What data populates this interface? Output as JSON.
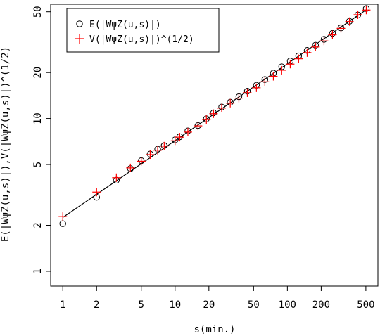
{
  "chart_data": {
    "type": "scatter",
    "x_scale": "log",
    "y_scale": "log",
    "xlabel": "s(min.)",
    "ylabel": "E(|WψZ(u,s)|),V(|WψZ(u,s)|)^(1/2)",
    "xlim": [
      0.78,
      640
    ],
    "ylim": [
      0.8,
      56
    ],
    "x_ticks": [
      1,
      2,
      5,
      10,
      20,
      50,
      100,
      200,
      500
    ],
    "y_ticks": [
      1,
      2,
      5,
      10,
      20,
      50
    ],
    "x_tick_labels": [
      "1",
      "2",
      "5",
      "10",
      "20",
      "50",
      "100",
      "200",
      "500"
    ],
    "y_tick_labels": [
      "1",
      "2",
      "5",
      "10",
      "20",
      "50"
    ],
    "grid": false,
    "legend_position": "top-left",
    "series": [
      {
        "name": "E(|WψZ(u,s)|)",
        "marker": "open-circle",
        "color": "#000000",
        "x": [
          1,
          2,
          3,
          4,
          5,
          6,
          7,
          8,
          10,
          11,
          13,
          16,
          19,
          22,
          26,
          31,
          37,
          44,
          53,
          63,
          75,
          89,
          106,
          126,
          150,
          178,
          212,
          252,
          300,
          357,
          424,
          504
        ],
        "y": [
          2.05,
          3.05,
          3.95,
          4.7,
          5.3,
          5.85,
          6.3,
          6.65,
          7.25,
          7.6,
          8.3,
          9.0,
          9.95,
          10.9,
          11.9,
          12.8,
          13.9,
          15.1,
          16.5,
          18.0,
          19.8,
          21.8,
          23.8,
          25.7,
          27.9,
          30.2,
          33.0,
          36.1,
          39.2,
          43.3,
          47.6,
          52.5
        ]
      },
      {
        "name": "V(|WψZ(u,s)|)^(1/2)",
        "marker": "plus",
        "color": "#ff0000",
        "x": [
          1,
          2,
          3,
          4,
          5,
          6,
          7,
          8,
          10,
          11,
          13,
          16,
          19,
          22,
          26,
          31,
          37,
          44,
          53,
          63,
          75,
          89,
          106,
          126,
          150,
          178,
          212,
          252,
          300,
          357,
          424,
          504
        ],
        "y": [
          2.28,
          3.3,
          4.1,
          4.75,
          5.25,
          5.8,
          6.2,
          6.6,
          7.15,
          7.55,
          8.15,
          8.95,
          9.85,
          10.75,
          11.7,
          12.6,
          13.6,
          14.75,
          15.9,
          17.4,
          18.9,
          20.7,
          22.7,
          24.6,
          27.0,
          29.4,
          32.2,
          35.3,
          38.9,
          43.1,
          47.8,
          51.3
        ]
      }
    ],
    "fit_line": {
      "x": [
        1,
        504
      ],
      "y": [
        2.25,
        51.5
      ],
      "color": "#000000"
    }
  }
}
